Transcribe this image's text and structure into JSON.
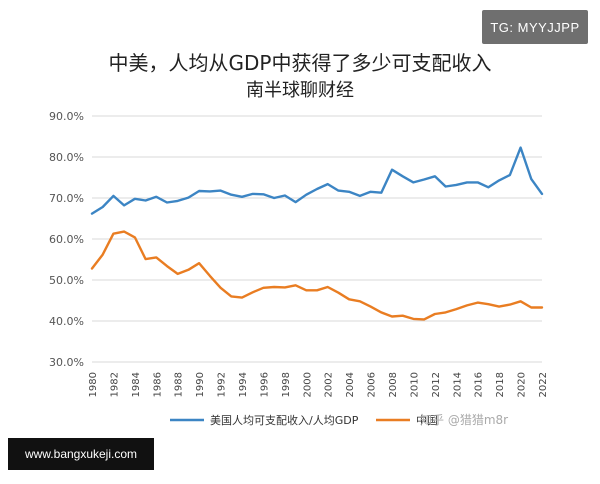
{
  "overlay": {
    "tg_label": "TG: MYYJJPP",
    "site_url": "www.bangxukeji.com",
    "watermark": "知乎 @猎猎m8r"
  },
  "chart_data": {
    "type": "line",
    "title": "中美，人均从GDP中获得了多少可支配收入",
    "subtitle": "南半球聊财经",
    "xlabel": "",
    "ylabel": "",
    "ylim": [
      30,
      90
    ],
    "yticks": [
      "30.0%",
      "40.0%",
      "50.0%",
      "60.0%",
      "70.0%",
      "80.0%",
      "90.0%"
    ],
    "xticks": [
      "1980",
      "1982",
      "1984",
      "1986",
      "1988",
      "1990",
      "1992",
      "1994",
      "1996",
      "1998",
      "2000",
      "2002",
      "2004",
      "2006",
      "2008",
      "2010",
      "2012",
      "2014",
      "2016",
      "2018",
      "2020",
      "2022"
    ],
    "x": [
      1980,
      1981,
      1982,
      1983,
      1984,
      1985,
      1986,
      1987,
      1988,
      1989,
      1990,
      1991,
      1992,
      1993,
      1994,
      1995,
      1996,
      1997,
      1998,
      1999,
      2000,
      2001,
      2002,
      2003,
      2004,
      2005,
      2006,
      2007,
      2008,
      2009,
      2010,
      2011,
      2012,
      2013,
      2014,
      2015,
      2016,
      2017,
      2018,
      2019,
      2020,
      2021,
      2022
    ],
    "series": [
      {
        "name": "美国人均可支配收入/人均GDP",
        "color": "#3c85c4",
        "values": [
          66.2,
          67.8,
          70.5,
          68.2,
          69.8,
          69.4,
          70.3,
          68.9,
          69.3,
          70.1,
          71.7,
          71.6,
          71.8,
          70.8,
          70.3,
          71.0,
          70.9,
          70.0,
          70.6,
          69.0,
          70.8,
          72.2,
          73.4,
          71.8,
          71.5,
          70.5,
          71.5,
          71.3,
          76.9,
          75.3,
          73.8,
          74.5,
          75.3,
          72.8,
          73.2,
          73.8,
          73.8,
          72.6,
          74.3,
          75.6,
          82.3,
          74.6,
          71.0
        ]
      },
      {
        "name": "中国",
        "color": "#e97d22",
        "values": [
          52.8,
          56.2,
          61.3,
          61.8,
          60.4,
          55.1,
          55.5,
          53.4,
          51.5,
          52.5,
          54.1,
          51.0,
          48.1,
          46.0,
          45.7,
          47.0,
          48.1,
          48.3,
          48.2,
          48.7,
          47.5,
          47.5,
          48.3,
          46.9,
          45.3,
          44.8,
          43.5,
          42.1,
          41.1,
          41.3,
          40.5,
          40.4,
          41.7,
          42.1,
          42.9,
          43.8,
          44.5,
          44.1,
          43.5,
          44.0,
          44.8,
          43.3,
          43.3
        ]
      }
    ],
    "grid": true,
    "legend": "bottom"
  }
}
